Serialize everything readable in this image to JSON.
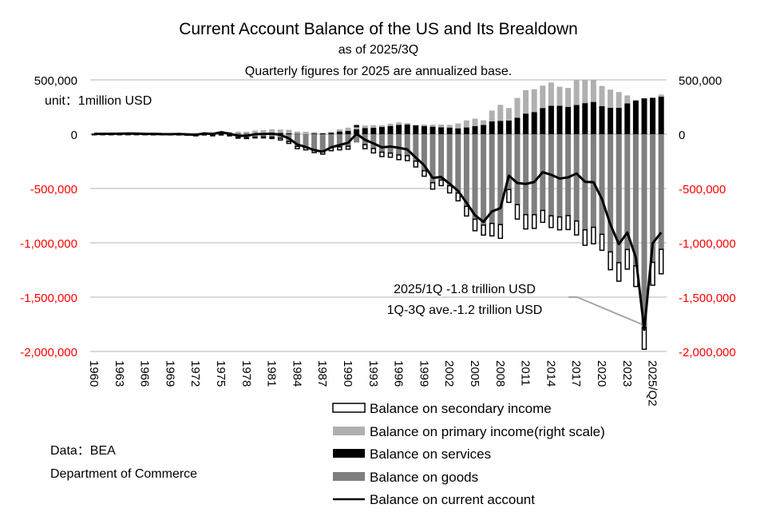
{
  "chart_data": {
    "type": "bar",
    "title": "Current Account Balance of the US and Its Brealdown",
    "subtitle": "as of 2025/3Q",
    "subtitle2": "Quarterly figures for 2025 are annualized base.",
    "unit_label": "unit：1million USD",
    "xlabel": "",
    "ylabel": "",
    "ylim": [
      -2000000,
      500000
    ],
    "y_ticks": [
      500000,
      0,
      -500000,
      -1000000,
      -1500000,
      -2000000
    ],
    "y_tick_labels": [
      "500,000",
      "0",
      "-500,000",
      "-1,000,000",
      "-1,500,000",
      "-2,000,000"
    ],
    "right_ylim": [
      -2000000,
      500000
    ],
    "right_tick_labels": [
      "500,000",
      "0",
      "-500,000",
      "-1,000,000",
      "-1,500,000",
      "-2,000,000"
    ],
    "positive_tick_color": "#000000",
    "negative_tick_color": "#ff0000",
    "grid": true,
    "x_tick_labels": [
      "1960",
      "1963",
      "1966",
      "1969",
      "1972",
      "1975",
      "1978",
      "1981",
      "1984",
      "1987",
      "1990",
      "1993",
      "1996",
      "1999",
      "2002",
      "2005",
      "2008",
      "2011",
      "2014",
      "2017",
      "2020",
      "2023",
      "2025/Q2"
    ],
    "categories": [
      "1960",
      "1961",
      "1962",
      "1963",
      "1964",
      "1965",
      "1966",
      "1967",
      "1968",
      "1969",
      "1970",
      "1971",
      "1972",
      "1973",
      "1974",
      "1975",
      "1976",
      "1977",
      "1978",
      "1979",
      "1980",
      "1981",
      "1982",
      "1983",
      "1984",
      "1985",
      "1986",
      "1987",
      "1988",
      "1989",
      "1990",
      "1991",
      "1992",
      "1993",
      "1994",
      "1995",
      "1996",
      "1997",
      "1998",
      "1999",
      "2000",
      "2001",
      "2002",
      "2003",
      "2004",
      "2005",
      "2006",
      "2007",
      "2008",
      "2009",
      "2010",
      "2011",
      "2012",
      "2013",
      "2014",
      "2015",
      "2016",
      "2017",
      "2018",
      "2019",
      "2020",
      "2021",
      "2022",
      "2023",
      "2024",
      "2025/Q1",
      "2025/Q2",
      "2025/Q3"
    ],
    "series": [
      {
        "name": "Balance on goods",
        "color": "#7f7f7f",
        "values": [
          5000,
          6000,
          4000,
          5000,
          7000,
          5000,
          4000,
          4000,
          600,
          600,
          2600,
          -2300,
          -6400,
          900,
          -5500,
          8900,
          -9500,
          -31000,
          -34000,
          -27500,
          -25500,
          -28000,
          -36500,
          -67000,
          -112500,
          -122000,
          -145000,
          -159500,
          -126500,
          -117500,
          -111000,
          -76900,
          -96900,
          -132500,
          -165800,
          -174200,
          -191000,
          -198400,
          -248200,
          -336300,
          -446800,
          -422400,
          -475200,
          -541600,
          -664800,
          -782800,
          -837300,
          -821200,
          -832500,
          -509700,
          -648700,
          -740600,
          -741100,
          -702200,
          -751500,
          -761900,
          -749800,
          -799300,
          -880300,
          -857300,
          -922000,
          -1083500,
          -1183000,
          -1062000,
          -1212000,
          -1780000,
          -1180000,
          -1060000
        ]
      },
      {
        "name": "Balance on services",
        "color": "#000000",
        "values": [
          -1400,
          -900,
          -1000,
          -800,
          -500,
          -300,
          -300,
          -900,
          -500,
          -1000,
          -400,
          1000,
          1000,
          900,
          1200,
          2200,
          3400,
          3800,
          4200,
          3000,
          6100,
          11900,
          12300,
          9300,
          3400,
          300,
          6500,
          7300,
          12100,
          24900,
          31000,
          45200,
          57000,
          60000,
          66000,
          76000,
          86000,
          90000,
          82000,
          75000,
          69000,
          64000,
          61000,
          54000,
          62000,
          75000,
          85000,
          118000,
          123000,
          126000,
          151000,
          190000,
          204000,
          241000,
          261000,
          262000,
          251000,
          269000,
          286000,
          297000,
          259000,
          243000,
          243000,
          284000,
          311000,
          330000,
          335000,
          345000
        ]
      },
      {
        "name": "Balance on primary income(right scale)",
        "color": "#b0b0b0",
        "values": [
          4500,
          4900,
          5600,
          5800,
          6900,
          7300,
          6900,
          7000,
          7700,
          7400,
          7500,
          9400,
          9500,
          13000,
          16000,
          13000,
          17000,
          19000,
          19000,
          31000,
          31000,
          33000,
          30000,
          31000,
          21000,
          22000,
          13000,
          5000,
          10000,
          20000,
          29000,
          24000,
          23000,
          23000,
          17000,
          21000,
          23000,
          12000,
          4000,
          14000,
          19000,
          25000,
          25000,
          45000,
          65000,
          68000,
          43000,
          100000,
          147000,
          115000,
          183000,
          215000,
          210000,
          206000,
          215000,
          175000,
          175000,
          240000,
          260000,
          240000,
          185000,
          168000,
          145000,
          73000,
          0,
          0,
          0,
          20000
        ]
      },
      {
        "name": "Balance on secondary income",
        "color": "#ffffff",
        "values": [
          -4000,
          -4000,
          -4100,
          -4300,
          -4300,
          -4300,
          -4600,
          -5000,
          -5000,
          -5300,
          -6200,
          -7000,
          -8600,
          -6900,
          -9200,
          -7100,
          -5700,
          -5300,
          -5800,
          -6600,
          -8400,
          -11700,
          -16500,
          -17800,
          -20600,
          -22000,
          -24100,
          -23300,
          -25300,
          -26200,
          -26700,
          9900,
          -36600,
          -39800,
          -40300,
          -38100,
          -43000,
          -45000,
          -53200,
          -50400,
          -58600,
          -51300,
          -64900,
          -71800,
          -88400,
          -105700,
          -91500,
          -115100,
          -125900,
          -118000,
          -132700,
          -131900,
          -125900,
          -109200,
          -107400,
          -118000,
          -127900,
          -128300,
          -142600,
          -151000,
          -146800,
          -163900,
          -170100,
          -180000,
          -190000,
          -200000,
          -210000,
          -225000
        ]
      },
      {
        "name": "Balance on current account",
        "color": "#000000",
        "line": true,
        "values": [
          2800,
          3800,
          3400,
          4400,
          6800,
          5400,
          3000,
          2600,
          600,
          400,
          2300,
          -1400,
          -5800,
          7100,
          2000,
          18100,
          4300,
          -14300,
          -15100,
          -300,
          2300,
          5000,
          -5500,
          -38700,
          -94300,
          -118200,
          -147200,
          -160700,
          -121200,
          -99500,
          -79000,
          2900,
          -51600,
          -84800,
          -121600,
          -113600,
          -124800,
          -140700,
          -215100,
          -286600,
          -401900,
          -394100,
          -456100,
          -522100,
          -631300,
          -745800,
          -806200,
          -711000,
          -681300,
          -381600,
          -449500,
          -457700,
          -440400,
          -349500,
          -373500,
          -408500,
          -397600,
          -361700,
          -438200,
          -441800,
          -597100,
          -831400,
          -1012100,
          -905400,
          -1133600,
          -1800000,
          -1003000,
          -905000
        ]
      }
    ],
    "annotations": [
      {
        "text": "2025/1Q -1.8 trillion USD",
        "target": "2025/Q1"
      },
      {
        "text": "1Q-3Q ave.-1.2 trillion USD",
        "target": "2025/Q1"
      }
    ],
    "legend_placement": "bottom-right",
    "legend": [
      {
        "label": "Balance on secondary income",
        "swatch": "hollow-box"
      },
      {
        "label": "Balance on primary income(right scale)",
        "swatch": "light-gray-box"
      },
      {
        "label": "Balance on services",
        "swatch": "black-box"
      },
      {
        "label": "Balance on goods",
        "swatch": "gray-box"
      },
      {
        "label": "Balance on current account",
        "swatch": "line"
      }
    ]
  },
  "source": {
    "line1": "Data：BEA",
    "line2": "Department of Commerce"
  }
}
